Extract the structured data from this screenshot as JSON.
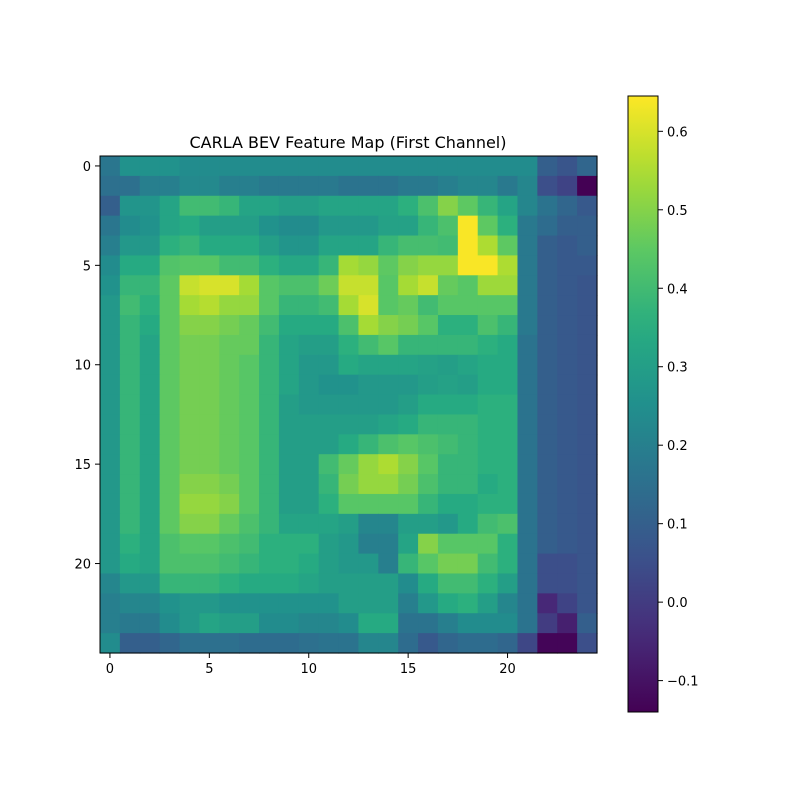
{
  "chart_data": {
    "type": "heatmap",
    "title": "CARLA BEV Feature Map (First Channel)",
    "colormap": "viridis",
    "xlabel": "",
    "ylabel": "",
    "x_ticks": [
      0,
      5,
      10,
      15,
      20
    ],
    "y_ticks": [
      0,
      5,
      10,
      15,
      20
    ],
    "xlim": [
      -0.5,
      24.5
    ],
    "ylim": [
      24.5,
      -0.5
    ],
    "color_range": [
      -0.14,
      0.645
    ],
    "colorbar_ticks": [
      -0.1,
      0.0,
      0.1,
      0.2,
      0.3,
      0.4,
      0.5,
      0.6
    ],
    "colorbar_tick_labels": [
      "−0.1",
      "0.0",
      "0.1",
      "0.2",
      "0.3",
      "0.4",
      "0.5",
      "0.6"
    ],
    "grid": false,
    "rows": 25,
    "cols": 25,
    "values": [
      [
        0.17,
        0.26,
        0.26,
        0.26,
        0.24,
        0.24,
        0.24,
        0.24,
        0.24,
        0.24,
        0.24,
        0.24,
        0.24,
        0.24,
        0.24,
        0.24,
        0.24,
        0.24,
        0.24,
        0.24,
        0.24,
        0.24,
        0.1,
        0.07,
        0.12
      ],
      [
        0.15,
        0.15,
        0.2,
        0.2,
        0.23,
        0.23,
        0.2,
        0.2,
        0.18,
        0.18,
        0.18,
        0.18,
        0.16,
        0.16,
        0.16,
        0.18,
        0.18,
        0.2,
        0.22,
        0.22,
        0.18,
        0.22,
        0.05,
        0.02,
        -0.14
      ],
      [
        0.1,
        0.27,
        0.27,
        0.32,
        0.4,
        0.4,
        0.38,
        0.32,
        0.32,
        0.3,
        0.3,
        0.32,
        0.32,
        0.32,
        0.32,
        0.36,
        0.42,
        0.5,
        0.45,
        0.38,
        0.32,
        0.22,
        0.16,
        0.12,
        0.08
      ],
      [
        0.17,
        0.24,
        0.26,
        0.32,
        0.34,
        0.3,
        0.3,
        0.3,
        0.26,
        0.24,
        0.24,
        0.28,
        0.28,
        0.28,
        0.31,
        0.31,
        0.38,
        0.42,
        0.64,
        0.45,
        0.36,
        0.18,
        0.14,
        0.1,
        0.1
      ],
      [
        0.2,
        0.28,
        0.28,
        0.36,
        0.38,
        0.34,
        0.34,
        0.34,
        0.3,
        0.27,
        0.27,
        0.32,
        0.32,
        0.32,
        0.38,
        0.41,
        0.41,
        0.4,
        0.64,
        0.55,
        0.45,
        0.18,
        0.1,
        0.08,
        0.1
      ],
      [
        0.24,
        0.34,
        0.34,
        0.43,
        0.44,
        0.44,
        0.4,
        0.4,
        0.36,
        0.33,
        0.33,
        0.38,
        0.54,
        0.52,
        0.45,
        0.5,
        0.52,
        0.52,
        0.64,
        0.64,
        0.55,
        0.18,
        0.1,
        0.08,
        0.08
      ],
      [
        0.26,
        0.38,
        0.38,
        0.45,
        0.58,
        0.6,
        0.6,
        0.54,
        0.44,
        0.42,
        0.42,
        0.47,
        0.58,
        0.58,
        0.44,
        0.54,
        0.58,
        0.46,
        0.44,
        0.53,
        0.53,
        0.18,
        0.1,
        0.08,
        0.07
      ],
      [
        0.28,
        0.4,
        0.36,
        0.45,
        0.54,
        0.56,
        0.52,
        0.52,
        0.44,
        0.38,
        0.38,
        0.4,
        0.54,
        0.6,
        0.44,
        0.46,
        0.4,
        0.44,
        0.44,
        0.44,
        0.44,
        0.18,
        0.1,
        0.08,
        0.07
      ],
      [
        0.28,
        0.38,
        0.34,
        0.45,
        0.5,
        0.5,
        0.48,
        0.46,
        0.4,
        0.34,
        0.34,
        0.34,
        0.42,
        0.54,
        0.5,
        0.48,
        0.44,
        0.36,
        0.36,
        0.42,
        0.38,
        0.18,
        0.1,
        0.08,
        0.07
      ],
      [
        0.28,
        0.38,
        0.32,
        0.45,
        0.48,
        0.48,
        0.46,
        0.46,
        0.38,
        0.32,
        0.3,
        0.3,
        0.36,
        0.4,
        0.44,
        0.38,
        0.38,
        0.38,
        0.38,
        0.36,
        0.34,
        0.16,
        0.1,
        0.08,
        0.07
      ],
      [
        0.28,
        0.38,
        0.32,
        0.45,
        0.48,
        0.48,
        0.46,
        0.44,
        0.38,
        0.32,
        0.28,
        0.28,
        0.34,
        0.32,
        0.32,
        0.32,
        0.31,
        0.3,
        0.32,
        0.34,
        0.34,
        0.16,
        0.1,
        0.08,
        0.07
      ],
      [
        0.28,
        0.38,
        0.32,
        0.45,
        0.48,
        0.48,
        0.46,
        0.44,
        0.38,
        0.32,
        0.28,
        0.26,
        0.26,
        0.28,
        0.28,
        0.28,
        0.3,
        0.31,
        0.3,
        0.34,
        0.34,
        0.16,
        0.1,
        0.08,
        0.07
      ],
      [
        0.28,
        0.38,
        0.32,
        0.45,
        0.48,
        0.48,
        0.46,
        0.44,
        0.38,
        0.3,
        0.28,
        0.28,
        0.28,
        0.28,
        0.28,
        0.3,
        0.34,
        0.34,
        0.34,
        0.36,
        0.36,
        0.16,
        0.1,
        0.08,
        0.07
      ],
      [
        0.28,
        0.38,
        0.32,
        0.45,
        0.48,
        0.48,
        0.46,
        0.44,
        0.38,
        0.3,
        0.3,
        0.3,
        0.3,
        0.3,
        0.32,
        0.34,
        0.38,
        0.38,
        0.38,
        0.36,
        0.36,
        0.16,
        0.1,
        0.08,
        0.07
      ],
      [
        0.28,
        0.38,
        0.32,
        0.45,
        0.48,
        0.48,
        0.46,
        0.44,
        0.38,
        0.3,
        0.3,
        0.3,
        0.34,
        0.38,
        0.42,
        0.44,
        0.42,
        0.4,
        0.38,
        0.36,
        0.36,
        0.16,
        0.1,
        0.08,
        0.07
      ],
      [
        0.28,
        0.38,
        0.32,
        0.45,
        0.48,
        0.48,
        0.46,
        0.44,
        0.38,
        0.3,
        0.3,
        0.4,
        0.46,
        0.52,
        0.55,
        0.5,
        0.44,
        0.38,
        0.38,
        0.36,
        0.36,
        0.16,
        0.1,
        0.08,
        0.07
      ],
      [
        0.28,
        0.38,
        0.32,
        0.45,
        0.5,
        0.5,
        0.48,
        0.44,
        0.38,
        0.3,
        0.3,
        0.38,
        0.48,
        0.52,
        0.52,
        0.48,
        0.42,
        0.38,
        0.38,
        0.34,
        0.36,
        0.16,
        0.1,
        0.08,
        0.07
      ],
      [
        0.28,
        0.38,
        0.32,
        0.45,
        0.52,
        0.52,
        0.5,
        0.44,
        0.38,
        0.3,
        0.3,
        0.36,
        0.44,
        0.44,
        0.44,
        0.44,
        0.38,
        0.34,
        0.34,
        0.36,
        0.36,
        0.16,
        0.1,
        0.08,
        0.07
      ],
      [
        0.28,
        0.38,
        0.32,
        0.45,
        0.5,
        0.5,
        0.46,
        0.42,
        0.38,
        0.32,
        0.32,
        0.32,
        0.3,
        0.22,
        0.22,
        0.3,
        0.3,
        0.28,
        0.34,
        0.4,
        0.42,
        0.16,
        0.1,
        0.08,
        0.07
      ],
      [
        0.28,
        0.36,
        0.32,
        0.42,
        0.44,
        0.44,
        0.42,
        0.4,
        0.36,
        0.36,
        0.36,
        0.3,
        0.28,
        0.2,
        0.2,
        0.32,
        0.5,
        0.44,
        0.44,
        0.44,
        0.36,
        0.16,
        0.1,
        0.08,
        0.07
      ],
      [
        0.28,
        0.34,
        0.32,
        0.42,
        0.42,
        0.42,
        0.4,
        0.38,
        0.36,
        0.36,
        0.34,
        0.3,
        0.28,
        0.28,
        0.2,
        0.38,
        0.44,
        0.48,
        0.48,
        0.4,
        0.36,
        0.16,
        0.05,
        0.05,
        0.07
      ],
      [
        0.22,
        0.28,
        0.28,
        0.38,
        0.38,
        0.38,
        0.36,
        0.34,
        0.34,
        0.34,
        0.32,
        0.3,
        0.3,
        0.3,
        0.3,
        0.24,
        0.34,
        0.4,
        0.4,
        0.36,
        0.3,
        0.16,
        0.05,
        0.05,
        0.07
      ],
      [
        0.2,
        0.22,
        0.22,
        0.26,
        0.28,
        0.28,
        0.26,
        0.26,
        0.26,
        0.26,
        0.26,
        0.26,
        0.3,
        0.3,
        0.3,
        0.2,
        0.28,
        0.34,
        0.36,
        0.3,
        0.22,
        0.16,
        -0.05,
        0.02,
        0.07
      ],
      [
        0.2,
        0.18,
        0.18,
        0.24,
        0.28,
        0.32,
        0.3,
        0.3,
        0.24,
        0.24,
        0.22,
        0.22,
        0.24,
        0.34,
        0.34,
        0.16,
        0.16,
        0.2,
        0.24,
        0.24,
        0.24,
        0.16,
        0.0,
        -0.07,
        0.1
      ],
      [
        0.24,
        0.1,
        0.1,
        0.12,
        0.15,
        0.15,
        0.15,
        0.14,
        0.14,
        0.14,
        0.15,
        0.16,
        0.16,
        0.22,
        0.22,
        0.14,
        0.08,
        0.12,
        0.14,
        0.14,
        0.12,
        0.03,
        -0.13,
        -0.13,
        0.05
      ]
    ]
  }
}
